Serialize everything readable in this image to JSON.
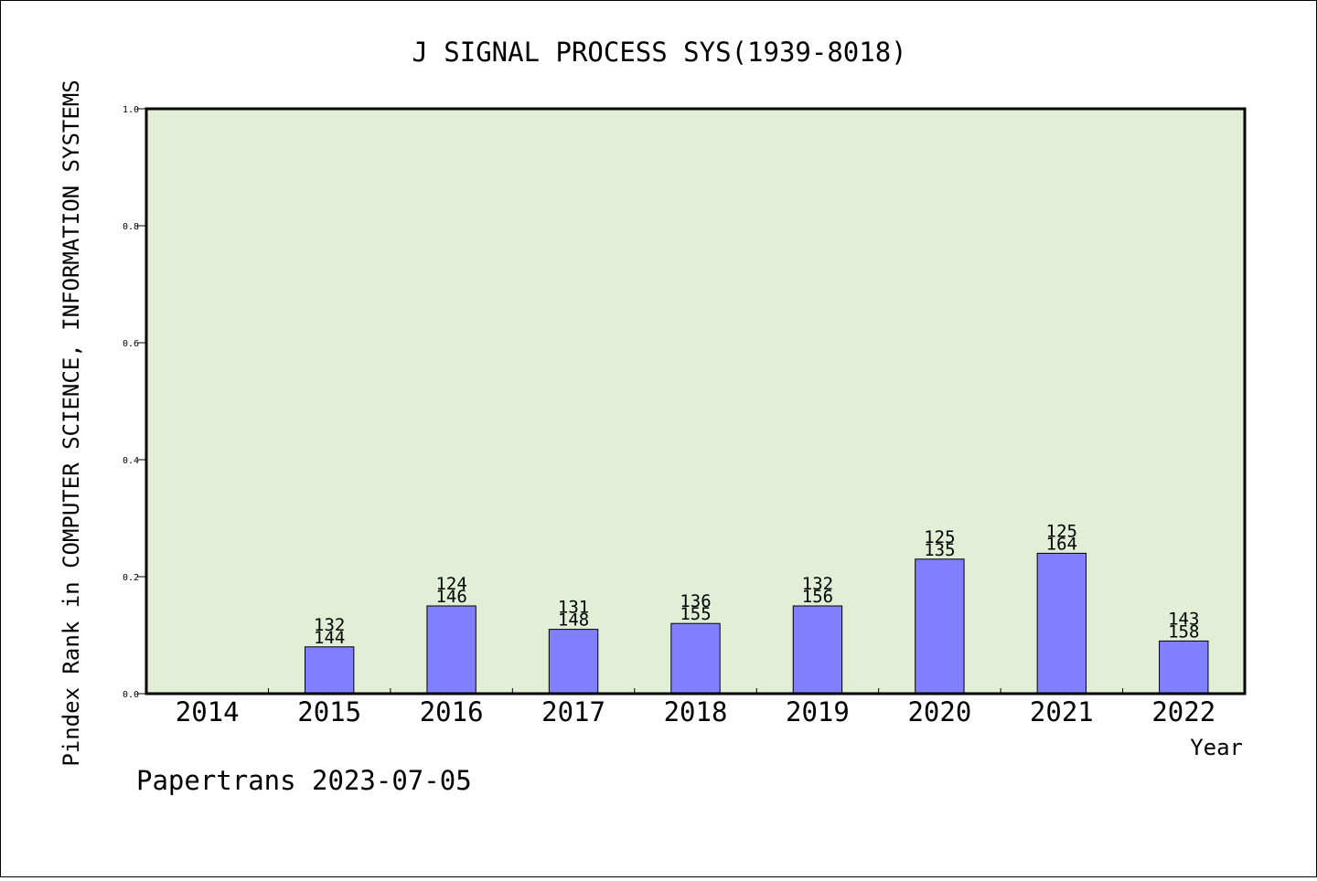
{
  "chart_data": {
    "type": "bar",
    "title": "J SIGNAL PROCESS SYS(1939-8018)",
    "xlabel": "Year",
    "ylabel": "Pindex Rank in COMPUTER SCIENCE, INFORMATION SYSTEMS",
    "ylim": [
      0,
      1.0
    ],
    "yticks": [
      "0.0",
      "0.2",
      "0.4",
      "0.6",
      "0.8",
      "1.0"
    ],
    "categories": [
      "2014",
      "2015",
      "2016",
      "2017",
      "2018",
      "2019",
      "2020",
      "2021",
      "2022"
    ],
    "values": [
      0,
      0.08,
      0.15,
      0.11,
      0.12,
      0.15,
      0.23,
      0.24,
      0.09
    ],
    "labels_top": [
      "",
      "132",
      "124",
      "131",
      "136",
      "132",
      "125",
      "125",
      "143"
    ],
    "labels_bottom": [
      "",
      "144",
      "146",
      "148",
      "155",
      "156",
      "135",
      "164",
      "158"
    ],
    "grid": false,
    "legend": "none",
    "colors": {
      "plot_background": "#e2efd6",
      "bar_fill": "#8080ff",
      "bar_stroke": "#000000"
    }
  },
  "footer": {
    "credit": "Papertrans 2023-07-05"
  }
}
